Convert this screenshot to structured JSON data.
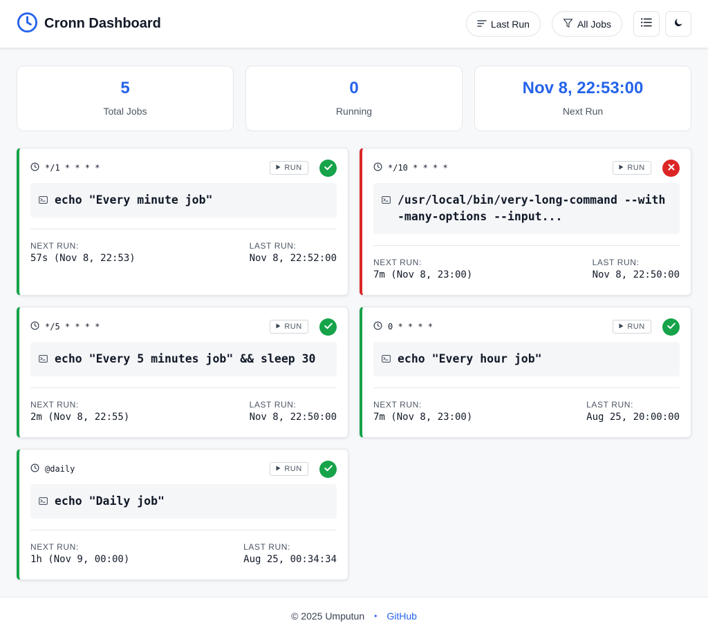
{
  "app": {
    "title": "Cronn Dashboard"
  },
  "header": {
    "sort_label": "Last Run",
    "filter_label": "All Jobs"
  },
  "stats": [
    {
      "value": "5",
      "label": "Total Jobs"
    },
    {
      "value": "0",
      "label": "Running"
    },
    {
      "value": "Nov 8, 22:53:00",
      "label": "Next Run"
    }
  ],
  "labels": {
    "run": "RUN",
    "next_run": "NEXT RUN:",
    "last_run": "LAST RUN:"
  },
  "jobs": [
    {
      "schedule": "*/1 * * * *",
      "command": "echo \"Every minute job\"",
      "status": "success",
      "next_run": "57s (Nov 8, 22:53)",
      "last_run": "Nov 8, 22:52:00"
    },
    {
      "schedule": "*/10 * * * *",
      "command": "/usr/local/bin/very-long-command --with-many-options --input...",
      "status": "failed",
      "next_run": "7m (Nov 8, 23:00)",
      "last_run": "Nov 8, 22:50:00"
    },
    {
      "schedule": "*/5 * * * *",
      "command": "echo \"Every 5 minutes job\" && sleep 30",
      "status": "success",
      "next_run": "2m (Nov 8, 22:55)",
      "last_run": "Nov 8, 22:50:00"
    },
    {
      "schedule": "0 * * * *",
      "command": "echo \"Every hour job\"",
      "status": "success",
      "next_run": "7m (Nov 8, 23:00)",
      "last_run": "Aug 25, 20:00:00"
    },
    {
      "schedule": "@daily",
      "command": "echo \"Daily job\"",
      "status": "success",
      "next_run": "1h (Nov 9, 00:00)",
      "last_run": "Aug 25, 00:34:34"
    }
  ],
  "footer": {
    "copyright": "© 2025 Umputun",
    "separator": "•",
    "link": "GitHub"
  },
  "colors": {
    "accent": "#2563eb",
    "success": "#16a34a",
    "failure": "#dc2626"
  },
  "icons": [
    "clock-icon",
    "sort-icon",
    "filter-icon",
    "list-icon",
    "moon-icon",
    "play-icon",
    "terminal-icon",
    "check-icon",
    "x-icon"
  ]
}
